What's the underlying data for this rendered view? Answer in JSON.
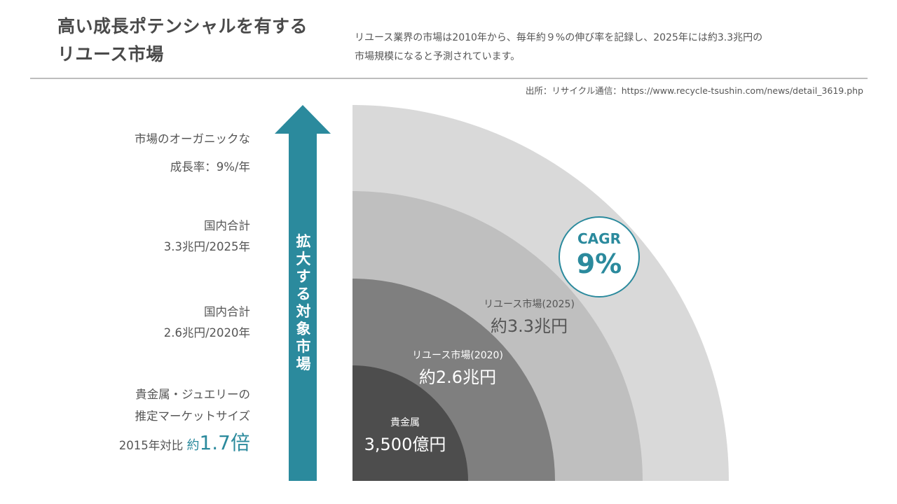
{
  "header": {
    "title_lines": [
      "高い成長ポテンシャルを有する",
      "リユース市場"
    ],
    "description_lines": [
      "リユース業界の市場は2010年から、毎年約９%の伸び率を記録し、2025年には約3.3兆円の",
      "市場規模になると予測されています。"
    ],
    "source": "出所：リサイクル通信：https://www.recycle-tsushin.com/news/detail_3619.php"
  },
  "left_labels": {
    "growth": [
      "市場のオーガニックな",
      "成長率：9%/年"
    ],
    "total_2025": [
      "国内合計",
      "3.3兆円/2025年"
    ],
    "total_2020": [
      "国内合計",
      "2.6兆円/2020年"
    ],
    "jewelry": {
      "line1": "貴金属・ジュエリーの",
      "line2": "推定マーケットサイズ",
      "prefix": "2015年対比",
      "approx": "約",
      "value": "1.7倍"
    }
  },
  "arrow": {
    "label": [
      "拡",
      "大",
      "す",
      "る",
      "対",
      "象",
      "市",
      "場"
    ]
  },
  "rings": [
    {
      "name": "貴金属",
      "value": "3,500億円"
    },
    {
      "name": "リユース市場(2020)",
      "value": "約2.6兆円"
    },
    {
      "name": "リユース市場(2025)",
      "value": "約3.3兆円"
    }
  ],
  "cagr": {
    "label": "CAGR",
    "value": "9%"
  },
  "colors": {
    "accent": "#2b8a9d",
    "ring_outer": "#d9d9d9",
    "ring_2025": "#bfbfbf",
    "ring_2020": "#7f7f7f",
    "ring_core": "#4d4d4d"
  }
}
